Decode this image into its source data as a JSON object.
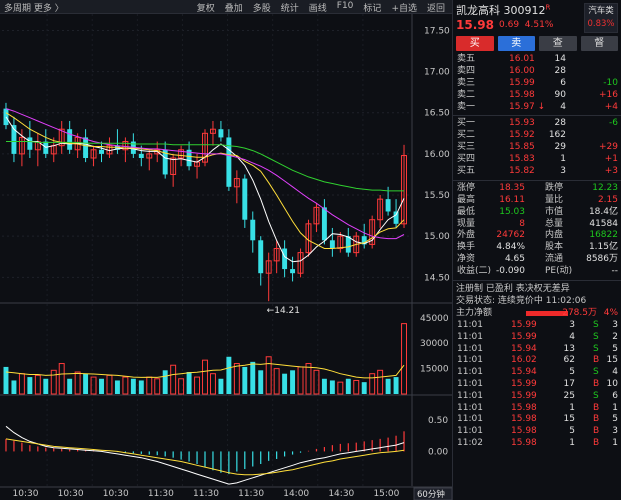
{
  "toolbar": {
    "period_label": "多周期",
    "more_label": "更多",
    "more_arrow": "〉",
    "tools": [
      "复权",
      "叠加",
      "多股",
      "统计",
      "画线",
      "F10",
      "标记",
      "+自选",
      "返回"
    ]
  },
  "stock": {
    "name": "凯龙高科",
    "code": "300912",
    "superscript": "R",
    "price": "15.98",
    "change": "0.69",
    "change_pct": "4.51%",
    "sector_label": "汽车类",
    "sector_pct": "0.83%"
  },
  "buttons": [
    "买",
    "卖",
    "查",
    "督"
  ],
  "order_book": {
    "asks": [
      {
        "label": "卖五",
        "price": "16.01",
        "volume": "14",
        "delta": ""
      },
      {
        "label": "卖四",
        "price": "16.00",
        "volume": "28",
        "delta": ""
      },
      {
        "label": "卖三",
        "price": "15.99",
        "volume": "6",
        "delta": "-10"
      },
      {
        "label": "卖二",
        "price": "15.98",
        "volume": "90",
        "delta": "+16"
      },
      {
        "label": "卖一",
        "price": "15.97",
        "volume": "4",
        "delta": "+4",
        "arrow": "↓"
      }
    ],
    "bids": [
      {
        "label": "买一",
        "price": "15.93",
        "volume": "28",
        "delta": "-6"
      },
      {
        "label": "买二",
        "price": "15.92",
        "volume": "162",
        "delta": ""
      },
      {
        "label": "买三",
        "price": "15.85",
        "volume": "29",
        "delta": "+29"
      },
      {
        "label": "买四",
        "price": "15.83",
        "volume": "1",
        "delta": "+1"
      },
      {
        "label": "买五",
        "price": "15.82",
        "volume": "3",
        "delta": "+3"
      }
    ]
  },
  "stats": [
    {
      "l1": "涨停",
      "v1": "18.35",
      "c1": "up",
      "l2": "跌停",
      "v2": "12.23",
      "c2": "dn"
    },
    {
      "l1": "最高",
      "v1": "16.11",
      "c1": "up",
      "l2": "量比",
      "v2": "2.15",
      "c2": "up"
    },
    {
      "l1": "最低",
      "v1": "15.03",
      "c1": "dn",
      "l2": "市值",
      "v2": "18.4亿",
      "c2": "wht"
    },
    {
      "l1": "现量",
      "v1": "8",
      "c1": "up",
      "l2": "总量",
      "v2": "41584",
      "c2": "wht"
    },
    {
      "l1": "外盘",
      "v1": "24762",
      "c1": "up",
      "l2": "内盘",
      "v2": "16822",
      "c2": "dn"
    },
    {
      "l1": "换手",
      "v1": "4.84%",
      "c1": "wht",
      "l2": "股本",
      "v2": "1.15亿",
      "c2": "wht"
    },
    {
      "l1": "净资",
      "v1": "4.65",
      "c1": "wht",
      "l2": "流通",
      "v2": "8586万",
      "c2": "wht"
    },
    {
      "l1": "收益(二)",
      "v1": "-0.090",
      "c1": "wht",
      "l2": "PE(动)",
      "v2": "--",
      "c2": "wht"
    }
  ],
  "info": {
    "line1": "注册制 已盈利 表决权无差异",
    "line2": "交易状态: 连续竞价中 11:02:06"
  },
  "main_flow": {
    "label": "主力净额",
    "value": "278.5万",
    "pct": "4%"
  },
  "ticks": [
    {
      "time": "11:01",
      "price": "15.99",
      "vol": "3",
      "side": "S",
      "n": "3"
    },
    {
      "time": "11:01",
      "price": "15.99",
      "vol": "4",
      "side": "S",
      "n": "2"
    },
    {
      "time": "11:01",
      "price": "15.94",
      "vol": "13",
      "side": "S",
      "n": "5"
    },
    {
      "time": "11:01",
      "price": "16.02",
      "vol": "62",
      "side": "B",
      "n": "15"
    },
    {
      "time": "11:01",
      "price": "15.94",
      "vol": "5",
      "side": "S",
      "n": "4"
    },
    {
      "time": "11:01",
      "price": "15.99",
      "vol": "17",
      "side": "B",
      "n": "10"
    },
    {
      "time": "11:01",
      "price": "15.99",
      "vol": "25",
      "side": "S",
      "n": "6"
    },
    {
      "time": "11:01",
      "price": "15.98",
      "vol": "1",
      "side": "B",
      "n": "1"
    },
    {
      "time": "11:01",
      "price": "15.98",
      "vol": "15",
      "side": "B",
      "n": "5"
    },
    {
      "time": "11:01",
      "price": "15.98",
      "vol": "5",
      "side": "B",
      "n": "3"
    },
    {
      "time": "11:02",
      "price": "15.98",
      "vol": "1",
      "side": "B",
      "n": "1"
    }
  ],
  "colors": {
    "up": "#ff3a3a",
    "down": "#1ec71e",
    "cyan": "#38e0e6",
    "bg": "#0d0f14"
  },
  "chart_data": [
    {
      "type": "candlestick",
      "ylim": [
        14.2,
        17.7
      ],
      "y_ticks": [
        "17.50",
        "17.00",
        "16.50",
        "16.00",
        "15.50",
        "15.00",
        "14.50"
      ],
      "annotation": "←14.21",
      "x_ticks": [
        "10:30",
        "10:30",
        "10:30",
        "11:30",
        "11:30",
        "11:30",
        "14:00",
        "14:30",
        "15:00"
      ],
      "period": "60分钟",
      "candles": [
        {
          "o": 16.55,
          "h": 16.62,
          "l": 16.3,
          "c": 16.35
        },
        {
          "o": 16.35,
          "h": 16.45,
          "l": 15.9,
          "c": 16.0
        },
        {
          "o": 16.0,
          "h": 16.3,
          "l": 15.85,
          "c": 16.2
        },
        {
          "o": 16.2,
          "h": 16.4,
          "l": 15.95,
          "c": 16.05
        },
        {
          "o": 16.05,
          "h": 16.25,
          "l": 15.85,
          "c": 16.15
        },
        {
          "o": 16.15,
          "h": 16.3,
          "l": 15.95,
          "c": 16.0
        },
        {
          "o": 16.0,
          "h": 16.2,
          "l": 15.9,
          "c": 16.1
        },
        {
          "o": 16.1,
          "h": 16.4,
          "l": 16.0,
          "c": 16.3
        },
        {
          "o": 16.3,
          "h": 16.4,
          "l": 16.0,
          "c": 16.05
        },
        {
          "o": 16.05,
          "h": 16.25,
          "l": 15.95,
          "c": 16.2
        },
        {
          "o": 16.2,
          "h": 16.3,
          "l": 15.9,
          "c": 15.95
        },
        {
          "o": 15.95,
          "h": 16.1,
          "l": 15.85,
          "c": 16.05
        },
        {
          "o": 16.05,
          "h": 16.15,
          "l": 15.9,
          "c": 16.0
        },
        {
          "o": 16.0,
          "h": 16.2,
          "l": 15.95,
          "c": 16.1
        },
        {
          "o": 16.1,
          "h": 16.3,
          "l": 16.0,
          "c": 16.05
        },
        {
          "o": 16.05,
          "h": 16.2,
          "l": 15.9,
          "c": 16.15
        },
        {
          "o": 16.15,
          "h": 16.25,
          "l": 15.95,
          "c": 16.0
        },
        {
          "o": 16.0,
          "h": 16.1,
          "l": 15.85,
          "c": 15.95
        },
        {
          "o": 15.95,
          "h": 16.05,
          "l": 15.8,
          "c": 16.0
        },
        {
          "o": 16.0,
          "h": 16.15,
          "l": 15.9,
          "c": 16.05
        },
        {
          "o": 16.05,
          "h": 16.15,
          "l": 15.7,
          "c": 15.75
        },
        {
          "o": 15.75,
          "h": 16.0,
          "l": 15.6,
          "c": 15.95
        },
        {
          "o": 15.95,
          "h": 16.1,
          "l": 15.85,
          "c": 16.05
        },
        {
          "o": 16.05,
          "h": 16.15,
          "l": 15.8,
          "c": 15.85
        },
        {
          "o": 15.85,
          "h": 16.0,
          "l": 15.7,
          "c": 15.9
        },
        {
          "o": 15.9,
          "h": 16.3,
          "l": 15.85,
          "c": 16.25
        },
        {
          "o": 16.25,
          "h": 16.4,
          "l": 16.1,
          "c": 16.3
        },
        {
          "o": 16.3,
          "h": 16.4,
          "l": 16.15,
          "c": 16.2
        },
        {
          "o": 16.2,
          "h": 16.3,
          "l": 15.55,
          "c": 15.6
        },
        {
          "o": 15.6,
          "h": 15.8,
          "l": 15.4,
          "c": 15.7
        },
        {
          "o": 15.7,
          "h": 15.75,
          "l": 15.1,
          "c": 15.2
        },
        {
          "o": 15.2,
          "h": 15.3,
          "l": 14.8,
          "c": 14.95
        },
        {
          "o": 14.95,
          "h": 15.0,
          "l": 14.4,
          "c": 14.55
        },
        {
          "o": 14.55,
          "h": 14.8,
          "l": 14.21,
          "c": 14.7
        },
        {
          "o": 14.7,
          "h": 14.95,
          "l": 14.55,
          "c": 14.85
        },
        {
          "o": 14.85,
          "h": 14.95,
          "l": 14.5,
          "c": 14.6
        },
        {
          "o": 14.6,
          "h": 14.75,
          "l": 14.45,
          "c": 14.55
        },
        {
          "o": 14.55,
          "h": 14.85,
          "l": 14.5,
          "c": 14.8
        },
        {
          "o": 14.8,
          "h": 15.2,
          "l": 14.75,
          "c": 15.15
        },
        {
          "o": 15.15,
          "h": 15.4,
          "l": 15.05,
          "c": 15.35
        },
        {
          "o": 15.35,
          "h": 15.45,
          "l": 14.9,
          "c": 14.95
        },
        {
          "o": 14.95,
          "h": 15.1,
          "l": 14.75,
          "c": 14.85
        },
        {
          "o": 14.85,
          "h": 15.05,
          "l": 14.8,
          "c": 15.0
        },
        {
          "o": 15.0,
          "h": 15.1,
          "l": 14.75,
          "c": 14.8
        },
        {
          "o": 14.8,
          "h": 15.05,
          "l": 14.75,
          "c": 15.0
        },
        {
          "o": 15.0,
          "h": 15.15,
          "l": 14.85,
          "c": 14.9
        },
        {
          "o": 14.9,
          "h": 15.25,
          "l": 14.85,
          "c": 15.2
        },
        {
          "o": 15.2,
          "h": 15.5,
          "l": 15.1,
          "c": 15.45
        },
        {
          "o": 15.45,
          "h": 15.6,
          "l": 15.25,
          "c": 15.3
        },
        {
          "o": 15.3,
          "h": 15.45,
          "l": 15.1,
          "c": 15.15
        },
        {
          "o": 15.15,
          "h": 16.11,
          "l": 15.1,
          "c": 15.98
        }
      ],
      "ma": [
        {
          "name": "MA5",
          "color": "#ffffff",
          "values": [
            16.45,
            16.3,
            16.22,
            16.15,
            16.15,
            16.08,
            16.1,
            16.13,
            16.12,
            16.13,
            16.12,
            16.09,
            16.07,
            16.04,
            16.06,
            16.07,
            16.06,
            16.04,
            16.03,
            16.03,
            15.95,
            15.93,
            15.94,
            15.92,
            15.9,
            15.96,
            16.05,
            16.12,
            16.05,
            15.97,
            15.86,
            15.68,
            15.45,
            15.18,
            14.95,
            14.75,
            14.69,
            14.7,
            14.77,
            14.87,
            14.94,
            15.03,
            15.02,
            14.99,
            14.93,
            14.91,
            14.95,
            15.08,
            15.2,
            15.26,
            15.46
          ]
        },
        {
          "name": "MA10",
          "color": "#ffde3a",
          "values": [
            16.5,
            16.44,
            16.37,
            16.3,
            16.25,
            16.2,
            16.16,
            16.14,
            16.13,
            16.12,
            16.1,
            16.09,
            16.09,
            16.08,
            16.08,
            16.07,
            16.07,
            16.06,
            16.05,
            16.04,
            16.01,
            15.99,
            15.98,
            15.97,
            15.96,
            15.96,
            15.99,
            16.01,
            15.99,
            15.98,
            15.91,
            15.86,
            15.79,
            15.65,
            15.5,
            15.34,
            15.18,
            15.04,
            14.95,
            14.9,
            14.85,
            14.85,
            14.86,
            14.87,
            14.9,
            14.92,
            14.98,
            15.05,
            15.09,
            15.1,
            15.2
          ]
        },
        {
          "name": "MA20",
          "color": "#e040fb",
          "values": [
            16.55,
            16.52,
            16.48,
            16.44,
            16.4,
            16.36,
            16.32,
            16.28,
            16.24,
            16.21,
            16.18,
            16.15,
            16.13,
            16.11,
            16.1,
            16.09,
            16.08,
            16.07,
            16.06,
            16.06,
            16.05,
            16.04,
            16.03,
            16.02,
            16.01,
            16.0,
            16.0,
            16.0,
            15.98,
            15.96,
            15.93,
            15.89,
            15.85,
            15.8,
            15.74,
            15.67,
            15.6,
            15.53,
            15.46,
            15.4,
            15.33,
            15.26,
            15.2,
            15.14,
            15.09,
            15.04,
            15.0,
            14.98,
            14.97,
            14.97,
            15.02
          ]
        },
        {
          "name": "MA60",
          "color": "#30d030",
          "values": [
            16.15,
            16.15,
            16.15,
            16.15,
            16.14,
            16.14,
            16.14,
            16.14,
            16.14,
            16.14,
            16.13,
            16.13,
            16.13,
            16.13,
            16.13,
            16.13,
            16.12,
            16.12,
            16.12,
            16.12,
            16.12,
            16.11,
            16.11,
            16.11,
            16.11,
            16.11,
            16.11,
            16.11,
            16.1,
            16.09,
            16.07,
            16.04,
            16.0,
            15.95,
            15.9,
            15.85,
            15.8,
            15.76,
            15.72,
            15.69,
            15.66,
            15.64,
            15.62,
            15.6,
            15.58,
            15.57,
            15.56,
            15.56,
            15.55,
            15.55,
            15.55
          ]
        }
      ]
    },
    {
      "type": "bar",
      "y_ticks": [
        "45000",
        "30000",
        "15000"
      ],
      "ylim": [
        0,
        52000
      ],
      "volumes": [
        16000,
        8000,
        12000,
        10000,
        11000,
        9000,
        14000,
        18000,
        9000,
        13000,
        12000,
        10000,
        9000,
        11000,
        8000,
        10000,
        9000,
        8000,
        10000,
        9000,
        14000,
        17000,
        9000,
        13000,
        10000,
        20000,
        12000,
        9000,
        22000,
        18000,
        16000,
        19000,
        14000,
        22000,
        15000,
        12000,
        14000,
        16000,
        18000,
        14000,
        9000,
        8000,
        7000,
        9000,
        8000,
        7000,
        12000,
        14000,
        9000,
        10000,
        41584
      ],
      "vol_ma": [
        13000,
        12500,
        12000,
        11500,
        11500,
        11000,
        11200,
        11800,
        12000,
        12200,
        12000,
        11800,
        11500,
        11200,
        11000,
        10500,
        10000,
        9800,
        9900,
        9800,
        10500,
        11500,
        12000,
        12500,
        12800,
        13500,
        14000,
        14200,
        15500,
        16500,
        17000,
        17800,
        17500,
        18000,
        17500,
        17000,
        16500,
        16000,
        15800,
        15500,
        14800,
        13500,
        12000,
        11000,
        10000,
        9500,
        9500,
        10000,
        10500,
        11000,
        17000
      ]
    },
    {
      "type": "macd",
      "y_ticks": [
        "0.50",
        "0.00"
      ],
      "ylim": [
        -0.55,
        0.85
      ],
      "hist": [
        0.2,
        0.17,
        0.14,
        0.1,
        0.08,
        0.06,
        0.05,
        0.04,
        0.03,
        0.03,
        0.02,
        0.02,
        0.01,
        0.0,
        -0.01,
        -0.02,
        -0.03,
        -0.04,
        -0.05,
        -0.06,
        -0.08,
        -0.1,
        -0.13,
        -0.16,
        -0.2,
        -0.25,
        -0.3,
        -0.34,
        -0.36,
        -0.32,
        -0.28,
        -0.24,
        -0.2,
        -0.15,
        -0.12,
        -0.08,
        -0.05,
        -0.02,
        0.01,
        0.04,
        0.07,
        0.1,
        0.12,
        0.13,
        0.14,
        0.16,
        0.18,
        0.2,
        0.22,
        0.25,
        0.32
      ],
      "dif": [
        0.4,
        0.3,
        0.22,
        0.16,
        0.12,
        0.08,
        0.06,
        0.05,
        0.04,
        0.03,
        0.02,
        0.01,
        0.0,
        -0.02,
        -0.04,
        -0.06,
        -0.08,
        -0.1,
        -0.13,
        -0.16,
        -0.2,
        -0.24,
        -0.28,
        -0.32,
        -0.36,
        -0.4,
        -0.44,
        -0.48,
        -0.52,
        -0.5,
        -0.46,
        -0.42,
        -0.38,
        -0.34,
        -0.3,
        -0.26,
        -0.22,
        -0.18,
        -0.15,
        -0.12,
        -0.1,
        -0.07,
        -0.04,
        -0.02,
        0.0,
        0.02,
        0.04,
        0.06,
        0.08,
        0.1,
        0.14
      ],
      "dea": [
        0.2,
        0.18,
        0.16,
        0.14,
        0.12,
        0.1,
        0.08,
        0.07,
        0.06,
        0.05,
        0.04,
        0.03,
        0.02,
        0.01,
        0.0,
        -0.02,
        -0.04,
        -0.06,
        -0.08,
        -0.1,
        -0.12,
        -0.14,
        -0.16,
        -0.19,
        -0.22,
        -0.25,
        -0.28,
        -0.31,
        -0.34,
        -0.36,
        -0.37,
        -0.37,
        -0.36,
        -0.35,
        -0.33,
        -0.31,
        -0.29,
        -0.26,
        -0.23,
        -0.2,
        -0.17,
        -0.15,
        -0.12,
        -0.1,
        -0.08,
        -0.06,
        -0.04,
        -0.02,
        -0.01,
        0.0,
        0.02
      ]
    }
  ]
}
